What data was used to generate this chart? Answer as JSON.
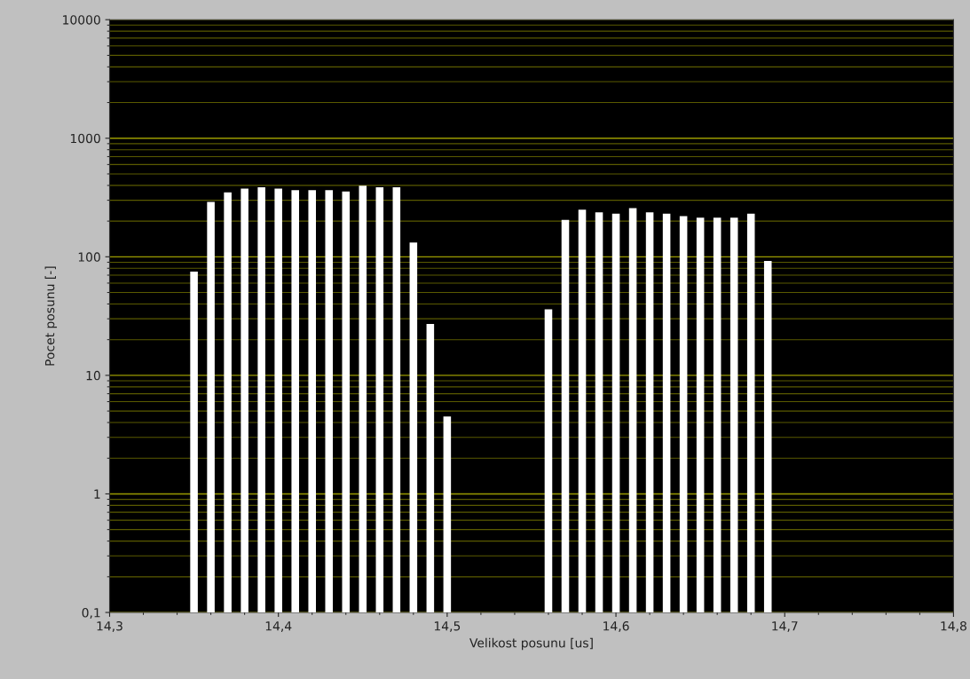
{
  "chart_data": {
    "type": "bar",
    "xlabel": "Velikost posunu [us]",
    "ylabel": "Pocet posunu [-]",
    "x": [
      14.35,
      14.36,
      14.37,
      14.38,
      14.39,
      14.4,
      14.41,
      14.42,
      14.43,
      14.44,
      14.45,
      14.46,
      14.47,
      14.48,
      14.49,
      14.5,
      14.56,
      14.57,
      14.58,
      14.59,
      14.6,
      14.61,
      14.62,
      14.63,
      14.64,
      14.65,
      14.66,
      14.67,
      14.68,
      14.69
    ],
    "values": [
      75,
      290,
      350,
      376,
      386,
      376,
      365,
      365,
      365,
      355,
      398,
      386,
      386,
      132,
      27,
      4.4,
      36,
      205,
      250,
      237,
      231,
      257,
      237,
      231,
      220,
      214,
      214,
      214,
      231,
      92
    ],
    "color": "#ffffff",
    "log": true,
    "grid": "y",
    "xlim": [
      14.3,
      14.8
    ],
    "xticks": [
      {
        "value": 14.3,
        "label": "14,3"
      },
      {
        "value": 14.4,
        "label": "14,4"
      },
      {
        "value": 14.5,
        "label": "14,5"
      },
      {
        "value": 14.6,
        "label": "14,6"
      },
      {
        "value": 14.7,
        "label": "14,7"
      },
      {
        "value": 14.8,
        "label": "14,8"
      }
    ],
    "ylim": [
      0.1,
      10000
    ],
    "yticks": [
      {
        "value": 0.1,
        "label": "0,1"
      },
      {
        "value": 0.2,
        "label": null
      },
      {
        "value": 0.3,
        "label": null
      },
      {
        "value": 0.4,
        "label": null
      },
      {
        "value": 0.5,
        "label": null
      },
      {
        "value": 0.6,
        "label": null
      },
      {
        "value": 0.7,
        "label": null
      },
      {
        "value": 0.8,
        "label": null
      },
      {
        "value": 0.9,
        "label": null
      },
      1,
      {
        "value": 2,
        "label": null
      },
      {
        "value": 3,
        "label": null
      },
      {
        "value": 4,
        "label": null
      },
      {
        "value": 5,
        "label": null
      },
      {
        "value": 6,
        "label": null
      },
      {
        "value": 7,
        "label": null
      },
      {
        "value": 8,
        "label": null
      },
      {
        "value": 9,
        "label": null
      },
      10,
      {
        "value": 20,
        "label": null
      },
      {
        "value": 30,
        "label": null
      },
      {
        "value": 40,
        "label": null
      },
      {
        "value": 50,
        "label": null
      },
      {
        "value": 60,
        "label": null
      },
      {
        "value": 70,
        "label": null
      },
      {
        "value": 80,
        "label": null
      },
      {
        "value": 90,
        "label": null
      },
      100,
      {
        "value": 200,
        "label": null
      },
      {
        "value": 300,
        "label": null
      },
      {
        "value": 400,
        "label": null
      },
      {
        "value": 500,
        "label": null
      },
      {
        "value": 600,
        "label": null
      },
      {
        "value": 700,
        "label": null
      },
      {
        "value": 800,
        "label": null
      },
      {
        "value": 900,
        "label": null
      },
      1000,
      {
        "value": 2000,
        "label": null
      },
      {
        "value": 3000,
        "label": null
      },
      {
        "value": 4000,
        "label": null
      },
      {
        "value": 5000,
        "label": null
      },
      {
        "value": 6000,
        "label": null
      },
      {
        "value": 7000,
        "label": null
      },
      {
        "value": 8000,
        "label": null
      },
      {
        "value": 9000,
        "label": null
      },
      10000
    ]
  }
}
